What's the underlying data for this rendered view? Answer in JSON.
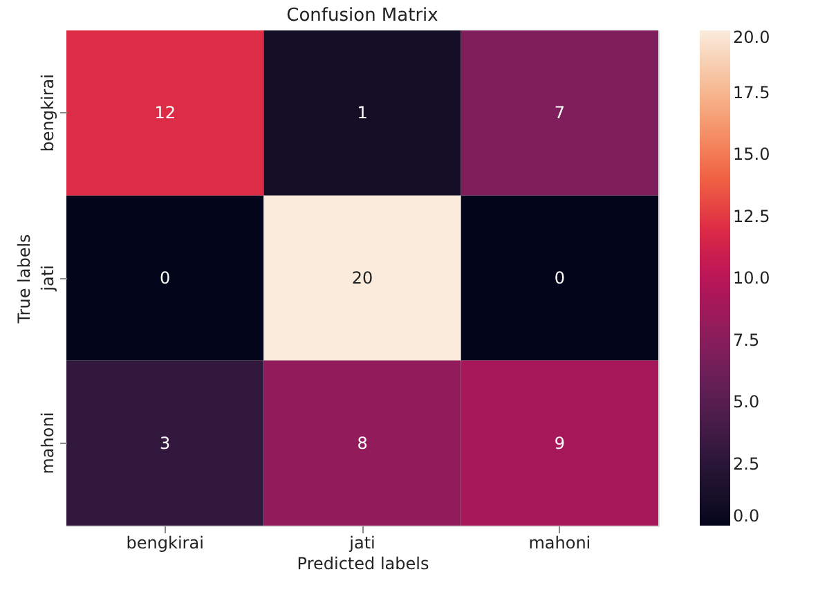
{
  "chart_data": {
    "type": "heatmap",
    "title": "Confusion Matrix",
    "xlabel": "Predicted labels",
    "ylabel": "True labels",
    "categories": [
      "bengkirai",
      "jati",
      "mahoni"
    ],
    "y_categories": [
      "bengkirai",
      "jati",
      "mahoni"
    ],
    "cells": [
      [
        12,
        1,
        7
      ],
      [
        0,
        20,
        0
      ],
      [
        3,
        8,
        9
      ]
    ],
    "data_labels": true,
    "clim": [
      0,
      20
    ],
    "cticks": [
      {
        "value": 0,
        "label": "0.0"
      },
      {
        "value": 2.5,
        "label": "2.5"
      },
      {
        "value": 5,
        "label": "5.0"
      },
      {
        "value": 7.5,
        "label": "7.5"
      },
      {
        "value": 10,
        "label": "10.0"
      },
      {
        "value": 12.5,
        "label": "12.5"
      },
      {
        "value": 15,
        "label": "15.0"
      },
      {
        "value": 17.5,
        "label": "17.5"
      },
      {
        "value": 20,
        "label": "20.0"
      }
    ]
  }
}
